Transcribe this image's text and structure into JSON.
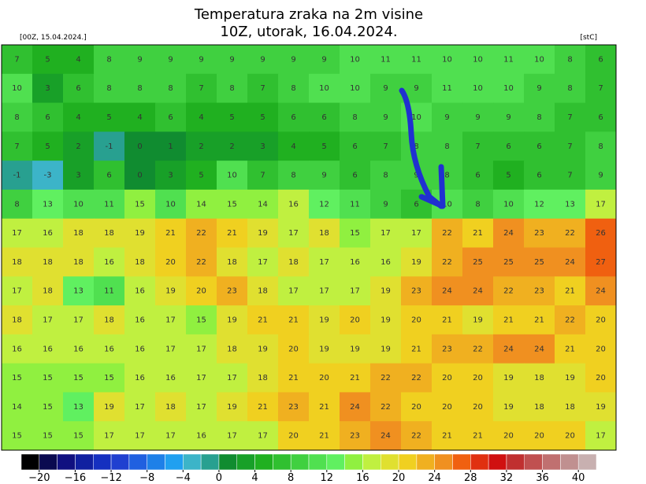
{
  "header": {
    "title": "Temperatura zraka na 2m visine",
    "subtitle": "10Z, utorak, 16.04.2024.",
    "run": "[00Z, 15.04.2024.]",
    "unit": "[stC]"
  },
  "map": {
    "grid": [
      [
        7,
        5,
        4,
        8,
        9,
        9,
        9,
        9,
        9,
        9,
        9,
        10,
        11,
        11,
        10,
        10,
        11,
        10,
        8,
        6
      ],
      [
        10,
        3,
        6,
        8,
        8,
        8,
        7,
        8,
        7,
        8,
        10,
        10,
        9,
        9,
        11,
        10,
        10,
        9,
        8,
        7
      ],
      [
        8,
        6,
        4,
        5,
        4,
        6,
        4,
        5,
        5,
        6,
        6,
        8,
        9,
        10,
        9,
        9,
        9,
        8,
        7,
        6
      ],
      [
        7,
        5,
        2,
        -1,
        0,
        1,
        2,
        2,
        3,
        4,
        5,
        6,
        7,
        8,
        8,
        7,
        6,
        6,
        7,
        8
      ],
      [
        -1,
        -3,
        3,
        6,
        0,
        3,
        5,
        10,
        7,
        8,
        9,
        6,
        8,
        9,
        8,
        6,
        5,
        6,
        7,
        9
      ],
      [
        8,
        13,
        10,
        11,
        15,
        10,
        14,
        15,
        14,
        16,
        12,
        11,
        9,
        6,
        10,
        8,
        10,
        12,
        13,
        17
      ],
      [
        17,
        16,
        18,
        18,
        19,
        21,
        22,
        21,
        19,
        17,
        18,
        15,
        17,
        17,
        22,
        21,
        24,
        23,
        22,
        26
      ],
      [
        18,
        18,
        18,
        16,
        18,
        20,
        22,
        18,
        17,
        18,
        17,
        16,
        16,
        19,
        22,
        25,
        25,
        25,
        24,
        27
      ],
      [
        17,
        18,
        13,
        11,
        16,
        19,
        20,
        23,
        18,
        17,
        17,
        17,
        19,
        23,
        24,
        24,
        22,
        23,
        21,
        24
      ],
      [
        18,
        17,
        17,
        18,
        16,
        17,
        15,
        19,
        21,
        21,
        19,
        20,
        19,
        20,
        21,
        19,
        21,
        21,
        22,
        20
      ],
      [
        16,
        16,
        16,
        16,
        16,
        17,
        17,
        18,
        19,
        20,
        19,
        19,
        19,
        21,
        23,
        22,
        24,
        24,
        21,
        20
      ],
      [
        15,
        15,
        15,
        15,
        16,
        16,
        17,
        17,
        18,
        21,
        20,
        21,
        22,
        22,
        20,
        20,
        19,
        18,
        19,
        20
      ],
      [
        14,
        15,
        13,
        19,
        17,
        18,
        17,
        19,
        21,
        23,
        21,
        24,
        22,
        20,
        20,
        20,
        19,
        18,
        18,
        19
      ],
      [
        15,
        15,
        15,
        17,
        17,
        17,
        16,
        17,
        17,
        20,
        21,
        23,
        24,
        22,
        21,
        21,
        20,
        20,
        20,
        17
      ]
    ]
  },
  "colorbar": {
    "lim": [
      -22,
      42
    ],
    "colors": [
      "#000000",
      "#0a0a50",
      "#101080",
      "#1020a0",
      "#1530c0",
      "#2040d0",
      "#2060e0",
      "#1e80e8",
      "#20a0f0",
      "#3cb4c8",
      "#28a090",
      "#108c30",
      "#18a028",
      "#20b020",
      "#30c030",
      "#40d040",
      "#50e050",
      "#60f060",
      "#90f040",
      "#c0f040",
      "#e0e030",
      "#f0d020",
      "#f0b020",
      "#f09020",
      "#f06010",
      "#e03010",
      "#d01010",
      "#c03030",
      "#c05050",
      "#c07070",
      "#c09090",
      "#c8b0b0"
    ],
    "ticks": [
      {
        "value": -20,
        "label": "−20"
      },
      {
        "value": -16,
        "label": "−16"
      },
      {
        "value": -12,
        "label": "−12"
      },
      {
        "value": -8,
        "label": "−8"
      },
      {
        "value": -4,
        "label": "−4"
      },
      0,
      4,
      8,
      12,
      16,
      20,
      24,
      28,
      32,
      36,
      40
    ]
  }
}
